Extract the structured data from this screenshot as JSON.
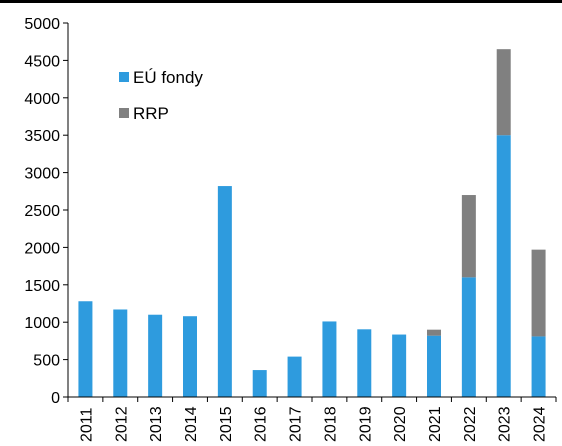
{
  "chart_data": {
    "type": "bar",
    "stacked": true,
    "categories": [
      "2011",
      "2012",
      "2013",
      "2014",
      "2015",
      "2016",
      "2017",
      "2018",
      "2019",
      "2020",
      "2021",
      "2022",
      "2023",
      "2024"
    ],
    "series": [
      {
        "name": "EÚ fondy",
        "color": "#2e9bde",
        "values": [
          1280,
          1170,
          1100,
          1080,
          2820,
          360,
          540,
          1010,
          905,
          835,
          820,
          1600,
          3500,
          810
        ]
      },
      {
        "name": "RRP",
        "color": "#808080",
        "values": [
          0,
          0,
          0,
          0,
          0,
          0,
          0,
          0,
          0,
          0,
          80,
          1100,
          1150,
          1160
        ]
      }
    ],
    "ylim": [
      0,
      5000
    ],
    "yticks": [
      0,
      500,
      1000,
      1500,
      2000,
      2500,
      3000,
      3500,
      4000,
      4500,
      5000
    ],
    "legend_position": "top-left",
    "grid": false
  }
}
